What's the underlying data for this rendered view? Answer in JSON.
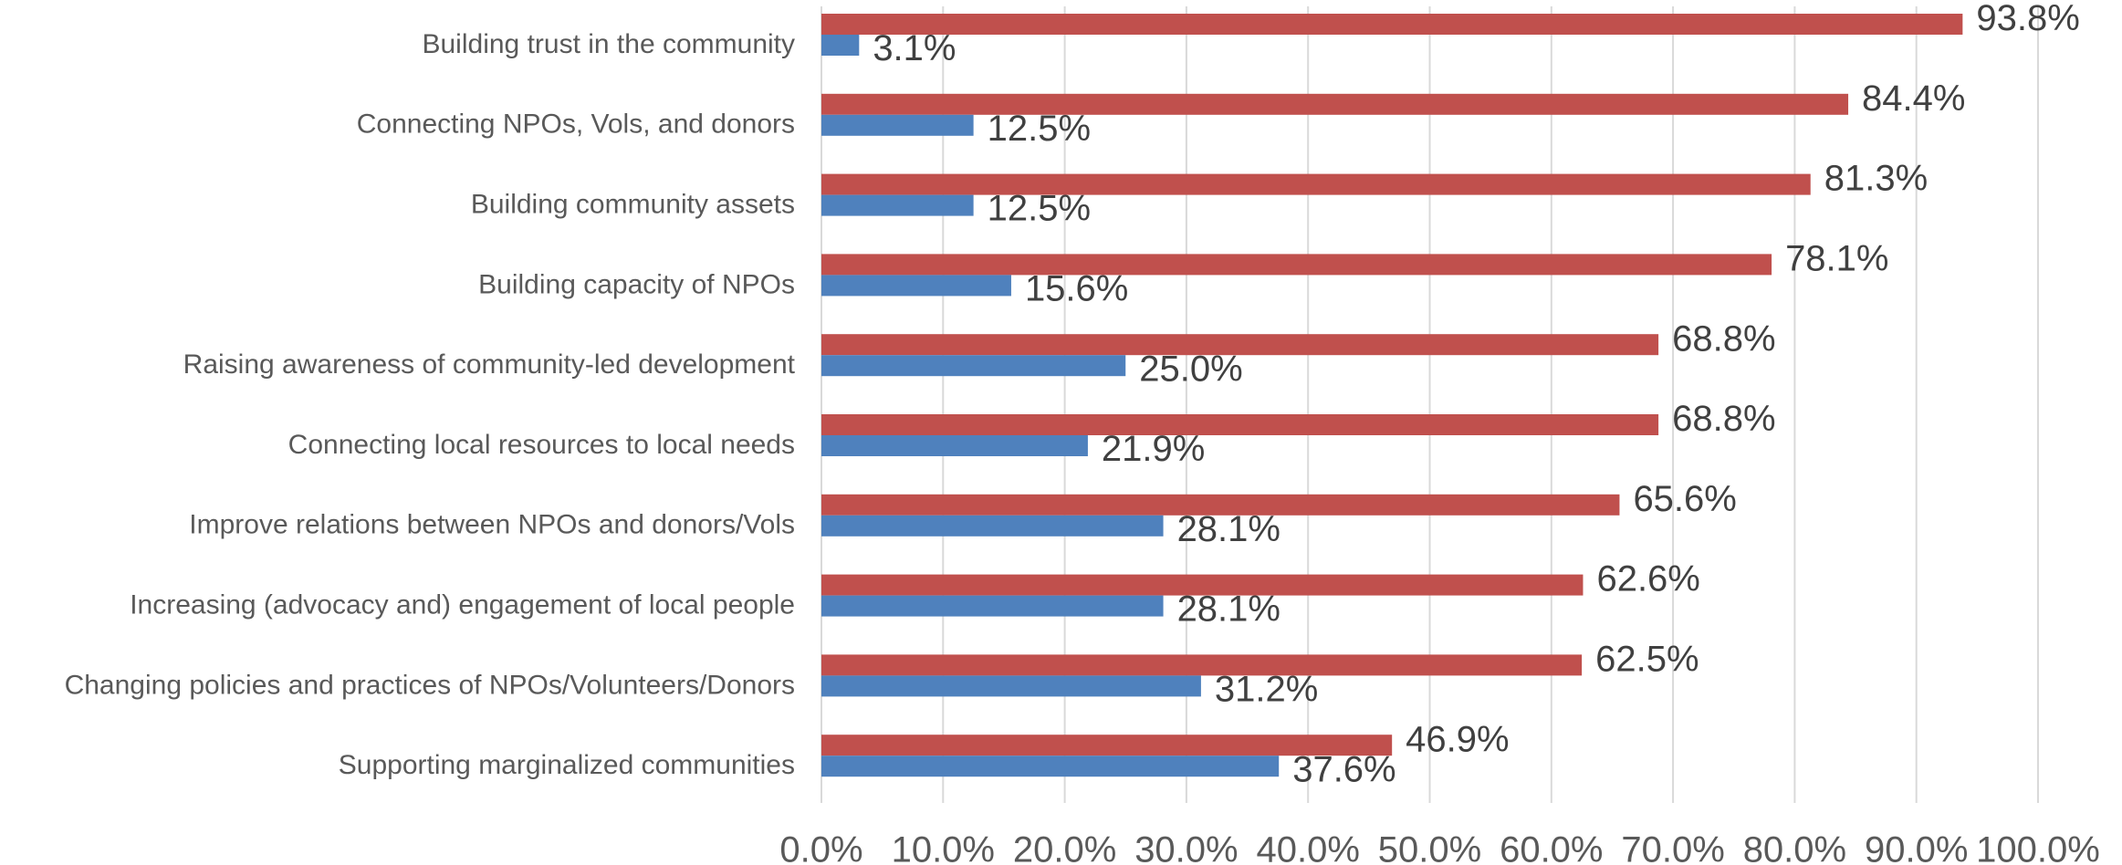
{
  "chart_data": {
    "type": "hbar",
    "categories": [
      "Building trust in the community",
      "Connecting NPOs, Vols, and donors",
      "Building community assets",
      "Building capacity of NPOs",
      "Raising awareness of community-led development",
      "Connecting local resources to local needs",
      "Improve relations between NPOs and donors/Vols",
      "Increasing (advocacy and) engagement of local people",
      "Changing policies and practices of NPOs/Volunteers/Donors",
      "Supporting marginalized communities"
    ],
    "series": [
      {
        "color": "#c0504d",
        "values": [
          93.8,
          84.4,
          81.3,
          78.1,
          68.8,
          68.8,
          65.6,
          62.6,
          62.5,
          46.9
        ],
        "value_labels": [
          "93.8%",
          "84.4%",
          "81.3%",
          "78.1%",
          "68.8%",
          "68.8%",
          "65.6%",
          "62.6%",
          "62.5%",
          "46.9%"
        ]
      },
      {
        "color": "#4f81bd",
        "values": [
          3.1,
          12.5,
          12.5,
          15.6,
          25.0,
          21.9,
          28.1,
          28.1,
          31.2,
          37.6
        ],
        "value_labels": [
          "3.1%",
          "12.5%",
          "12.5%",
          "15.6%",
          "25.0%",
          "21.9%",
          "28.1%",
          "28.1%",
          "31.2%",
          "37.6%"
        ]
      }
    ],
    "xlim": [
      0,
      100
    ],
    "xticks": [
      {
        "value": 0,
        "label": "0.0%"
      },
      {
        "value": 10,
        "label": "10.0%"
      },
      {
        "value": 20,
        "label": "20.0%"
      },
      {
        "value": 30,
        "label": "30.0%"
      },
      {
        "value": 40,
        "label": "40.0%"
      },
      {
        "value": 50,
        "label": "50.0%"
      },
      {
        "value": 60,
        "label": "60.0%"
      },
      {
        "value": 70,
        "label": "70.0%"
      },
      {
        "value": 80,
        "label": "80.0%"
      },
      {
        "value": 90,
        "label": "90.0%"
      },
      {
        "value": 100,
        "label": "100.0%"
      }
    ],
    "grid": true
  }
}
